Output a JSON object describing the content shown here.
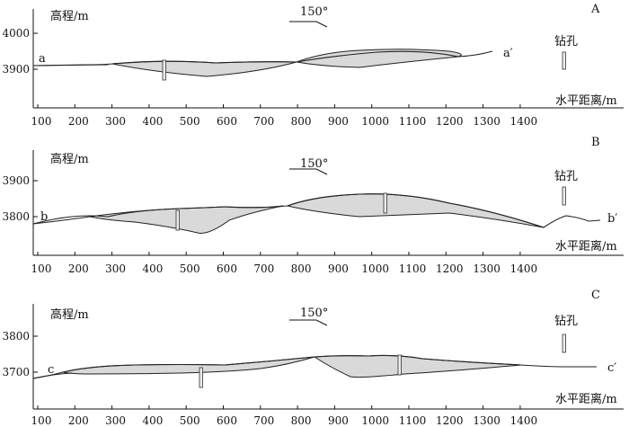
{
  "panels": [
    {
      "id": "A",
      "y_axis_label": "高程/m",
      "y_ticks": [
        "4000",
        "3900"
      ],
      "x_axis_label": "水平距离/m",
      "x_ticks": [
        "100",
        "200",
        "300",
        "400",
        "500",
        "600",
        "700",
        "800",
        "900",
        "1000",
        "1100",
        "1200",
        "1300",
        "1400"
      ],
      "direction_label": "150°",
      "legend_label": "钻孔",
      "section_start": "a",
      "section_end": "a′"
    },
    {
      "id": "B",
      "y_axis_label": "高程/m",
      "y_ticks": [
        "3900",
        "3800"
      ],
      "x_axis_label": "水平距离/m",
      "x_ticks": [
        "100",
        "200",
        "300",
        "400",
        "500",
        "600",
        "700",
        "800",
        "900",
        "1000",
        "1100",
        "1200",
        "1300",
        "1400"
      ],
      "direction_label": "150°",
      "legend_label": "钻孔",
      "section_start": "b",
      "section_end": "b′"
    },
    {
      "id": "C",
      "y_axis_label": "高程/m",
      "y_ticks": [
        "3800",
        "3700"
      ],
      "x_axis_label": "水平距离/m",
      "x_ticks": [
        "100",
        "200",
        "300",
        "400",
        "500",
        "600",
        "700",
        "800",
        "900",
        "1000",
        "1100",
        "1200",
        "1300",
        "1400"
      ],
      "direction_label": "150°",
      "legend_label": "钻孔",
      "section_start": "c",
      "section_end": "c′"
    }
  ]
}
